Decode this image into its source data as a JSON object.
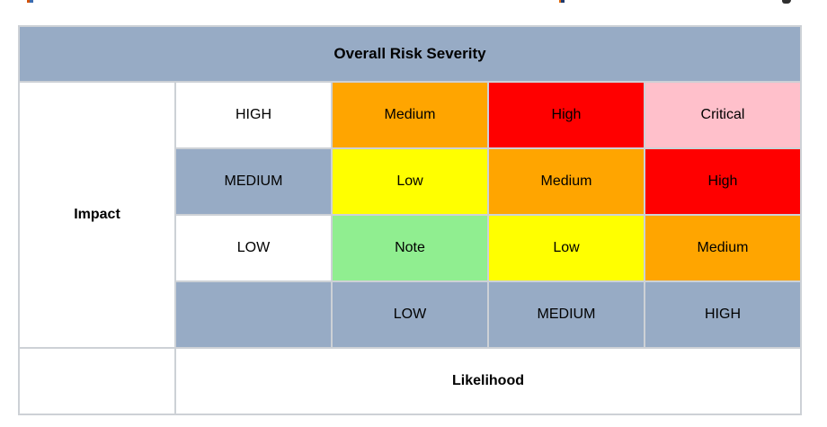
{
  "chart_data": {
    "type": "heatmap",
    "title": "Overall Risk Severity",
    "y_axis_label": "Impact",
    "x_axis_label": "Likelihood",
    "y_categories": [
      "HIGH",
      "MEDIUM",
      "LOW"
    ],
    "x_categories": [
      "LOW",
      "MEDIUM",
      "HIGH"
    ],
    "values": [
      [
        "Medium",
        "High",
        "Critical"
      ],
      [
        "Low",
        "Medium",
        "High"
      ],
      [
        "Note",
        "Low",
        "Medium"
      ]
    ],
    "cell_colors": [
      [
        "#FFA500",
        "#FF0000",
        "#FFC0CB"
      ],
      [
        "#FFFF00",
        "#FFA500",
        "#FF0000"
      ],
      [
        "#90EE90",
        "#FFFF00",
        "#FFA500"
      ]
    ],
    "value_color_map": {
      "Note": "#90EE90",
      "Low": "#FFFF00",
      "Medium": "#FFA500",
      "High": "#FF0000",
      "Critical": "#FFC0CB"
    },
    "row_label_colors": [
      "#FFFFFF",
      "#97ABC5",
      "#FFFFFF"
    ],
    "legend": "none",
    "grid": "on"
  },
  "ui": {
    "header_bg": "#97ABC5",
    "border_color": "#CDD1D6",
    "text_color": "#000000"
  }
}
